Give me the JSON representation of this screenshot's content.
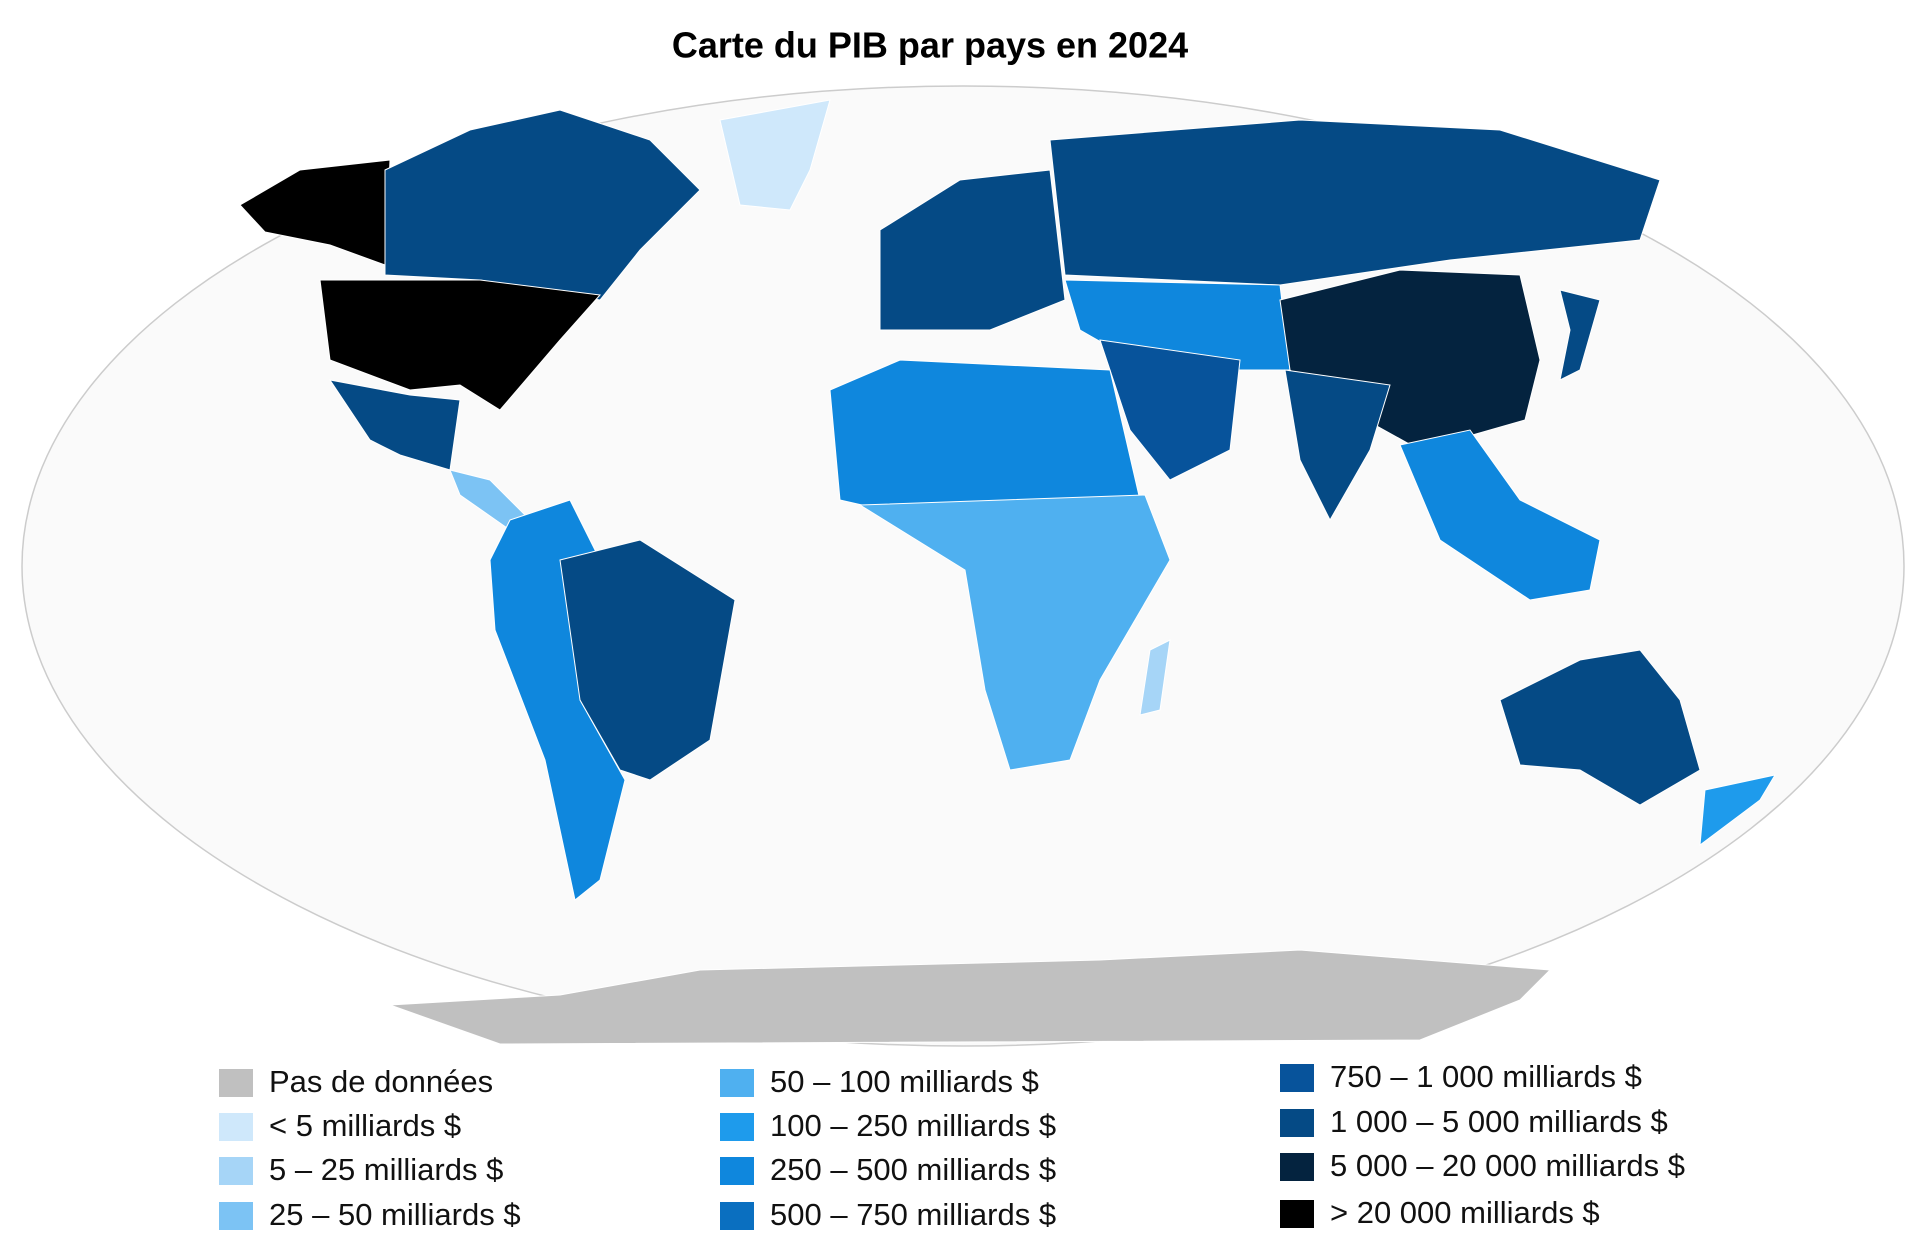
{
  "title": "Carte du PIB par pays en 2024",
  "legend": {
    "items": [
      {
        "label": "Pas de données",
        "color": "#c0c0c0"
      },
      {
        "label": "< 5 milliards $",
        "color": "#cfe8fb"
      },
      {
        "label": "5 – 25 milliards $",
        "color": "#a6d5f7"
      },
      {
        "label": "25 – 50 milliards $",
        "color": "#7cc3f4"
      },
      {
        "label": "50 – 100 milliards $",
        "color": "#4fb0f0"
      },
      {
        "label": "100 – 250 milliards $",
        "color": "#1e9bec"
      },
      {
        "label": "250 – 500 milliards $",
        "color": "#0f87dd"
      },
      {
        "label": "500 – 750 milliards $",
        "color": "#0a6fc0"
      },
      {
        "label": "750 – 1 000 milliards $",
        "color": "#07539b"
      },
      {
        "label": "1 000 – 5 000 milliards $",
        "color": "#054a85"
      },
      {
        "label": "5 000 – 20 000 milliards $",
        "color": "#04233f"
      },
      {
        "label": "> 20 000 milliards $",
        "color": "#000000"
      }
    ]
  }
}
